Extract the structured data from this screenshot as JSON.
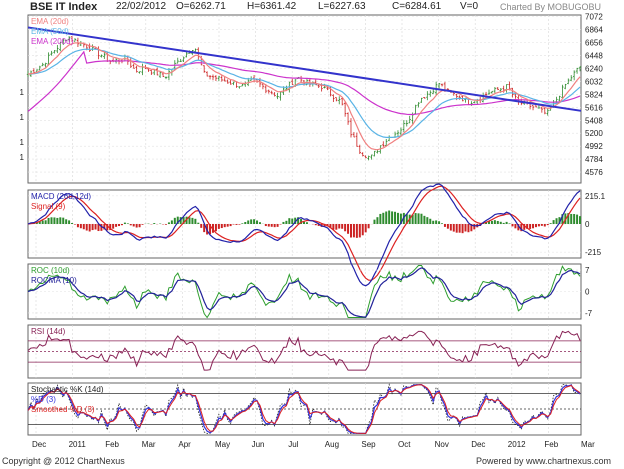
{
  "header": {
    "title": "BSE IT Index",
    "date": "22/02/2012",
    "open": "O=6262.71",
    "high": "H=6361.42",
    "low": "L=6227.63",
    "close": "C=6284.61",
    "volume": "V=0",
    "watermark": "Charted By MOBUGOBU"
  },
  "footer": {
    "copyright": "Copyright @ 2012 ChartNexus",
    "powered": "Powered by www.chartnexus.com"
  },
  "colors": {
    "price_up": "#2e8b2e",
    "price_down": "#cc2222",
    "ema20": "#f08080",
    "ema50": "#5ab4e6",
    "ema200": "#cc33cc",
    "trendline": "#3333cc",
    "macd": "#2222aa",
    "signal": "#dd2222",
    "roc": "#2e9e2e",
    "rocma": "#222299",
    "rsi": "#882255",
    "stoch_k": "#222222",
    "stoch_d": "#3333dd",
    "smoothed_d": "#dd2222"
  },
  "chart_data": {
    "type": "line",
    "x_axis_labels": [
      "Dec",
      "2011",
      "Feb",
      "Mar",
      "Apr",
      "May",
      "Jun",
      "Jul",
      "Aug",
      "Sep",
      "Oct",
      "Nov",
      "Dec",
      "2012",
      "Feb",
      "Mar"
    ],
    "panels": [
      {
        "name": "price",
        "legend": [
          "EMA (20d)",
          "EMA (50d)",
          "EMA (200d)"
        ],
        "ylim": [
          4400,
          7100
        ],
        "y_ticks": [
          7072,
          6864,
          6656,
          6448,
          6240,
          6032,
          5824,
          5616,
          5408,
          5200,
          4992,
          4784,
          4576
        ],
        "left_axis_labels": [
          "1",
          "1",
          "1",
          "1"
        ],
        "close_anchors": {
          "x": [
            0,
            15,
            25,
            40,
            60,
            70,
            85,
            100,
            110,
            120,
            140,
            150,
            160,
            170,
            180,
            190,
            200,
            210,
            220,
            230,
            240,
            255,
            265,
            275,
            285,
            300,
            320,
            330,
            340,
            350,
            360,
            370,
            380,
            390,
            400,
            410,
            420,
            430,
            440,
            450,
            460,
            470,
            480,
            490,
            500,
            510,
            520,
            530,
            540,
            550,
            560,
            565
          ],
          "close": [
            6150,
            6300,
            6500,
            6750,
            6600,
            6500,
            6350,
            6400,
            6200,
            6250,
            6100,
            6300,
            6450,
            6600,
            6150,
            6100,
            6050,
            6000,
            5950,
            6050,
            5950,
            5800,
            5950,
            6100,
            6000,
            5950,
            5700,
            5200,
            4900,
            4800,
            5000,
            5150,
            5250,
            5450,
            5750,
            5850,
            6000,
            5850,
            5800,
            5700,
            5750,
            5850,
            5900,
            5950,
            5700,
            5650,
            5600,
            5500,
            5750,
            6000,
            6200,
            6285
          ]
        },
        "trendline": {
          "start": {
            "x": 0,
            "y": 6900
          },
          "end": {
            "x": 565,
            "y": 5560
          }
        }
      },
      {
        "name": "macd",
        "legend": [
          "MACD (26d,12d)",
          "Signal (9)"
        ],
        "ylim": [
          -260,
          260
        ],
        "y_ticks": [
          215.1,
          0,
          -215
        ]
      },
      {
        "name": "roc",
        "legend": [
          "ROC (10d)",
          "ROCMA (10)"
        ],
        "ylim": [
          -9,
          9
        ],
        "y_ticks": [
          7,
          0,
          -7
        ]
      },
      {
        "name": "rsi",
        "legend": [
          "RSI (14d)"
        ],
        "ylim": [
          0,
          100
        ],
        "reference_lines": [
          30,
          50,
          70
        ]
      },
      {
        "name": "stochastic",
        "legend": [
          "Stochastic %K (14d)",
          "%D (3)",
          "Smoothed %D (3)"
        ],
        "ylim": [
          0,
          100
        ],
        "reference_lines": [
          20,
          50,
          80
        ]
      }
    ]
  }
}
